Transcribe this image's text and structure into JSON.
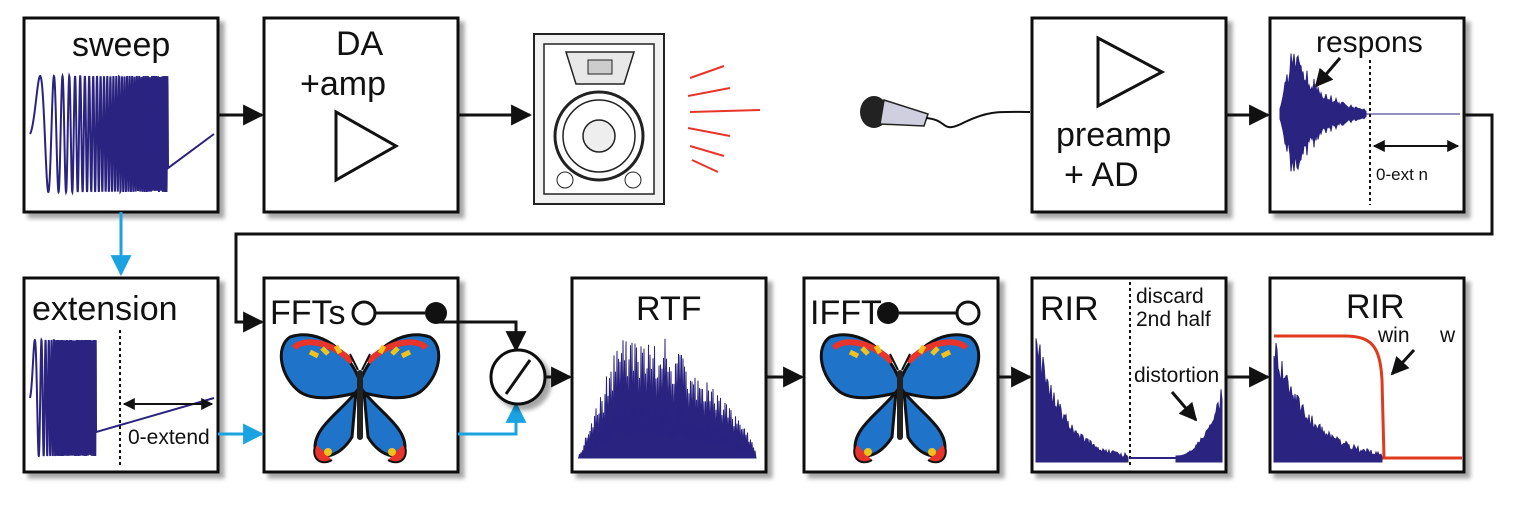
{
  "blocks": {
    "sweep": {
      "title": "sweep"
    },
    "da_amp": {
      "line1": "DA",
      "line2": "+amp"
    },
    "preamp": {
      "line1": "preamp",
      "line2": "+ AD"
    },
    "response": {
      "title": "respons",
      "extend_label": "0-ext  n"
    },
    "extension": {
      "title": "extension",
      "extend_label": "0-extend"
    },
    "ffts": {
      "title": "FFTs"
    },
    "rtf": {
      "title": "RTF"
    },
    "ifft": {
      "title": "IFFT"
    },
    "rir_raw": {
      "title": "RIR",
      "discard_line1": "discard",
      "discard_line2": "2nd half",
      "distortion_label": "distortion"
    },
    "rir_windowed": {
      "title": "RIR",
      "window_label": "win",
      "window_tail": "w"
    }
  },
  "colors": {
    "signal": "#2a2380",
    "flow_arrow": "#111111",
    "branch_arrow": "#1aa3e0",
    "window_curve": "#e03a1e",
    "sound_waves": "#e8342a"
  },
  "icons": [
    "loudspeaker-icon",
    "microphone-icon",
    "butterfly-icon",
    "divide-icon"
  ]
}
